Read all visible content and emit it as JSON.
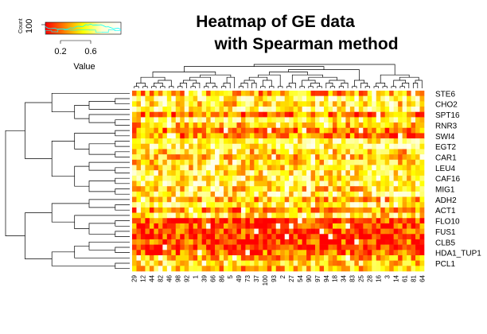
{
  "chart_data": {
    "type": "heatmap",
    "title_line1": "Heatmap of GE data",
    "title_line2": "with Spearman method",
    "color_scale": [
      "#ff0000",
      "#ff8000",
      "#ffff00",
      "#ffffd0",
      "#ffffff"
    ],
    "key": {
      "label": "Value",
      "ticks": [
        {
          "value": 0.2,
          "text": "0.2"
        },
        {
          "value": 0.6,
          "text": "0.6"
        }
      ],
      "range": [
        0.0,
        1.0
      ],
      "count_label": "Count",
      "count_tick": "100",
      "histogram_color": "#00ffff",
      "density_color": "#00ffff"
    },
    "row_labels_shown": [
      "STE6",
      "CHO2",
      "SPT16",
      "RNR3",
      "SWI4",
      "EGT2",
      "CAR1",
      "LEU4",
      "CAF16",
      "MIG1",
      "ADH2",
      "ACT1",
      "FLO10",
      "FUS1",
      "CLB5",
      "HDA1_TUP1",
      "PCL1"
    ],
    "column_labels": [
      "29",
      "12",
      "44",
      "82",
      "46",
      "98",
      "92",
      "1",
      "39",
      "66",
      "86",
      "5",
      "49",
      "73",
      "37",
      "100",
      "93",
      "2",
      "27",
      "54",
      "90",
      "97",
      "94",
      "18",
      "34",
      "83",
      "25",
      "28",
      "16",
      "3",
      "14",
      "61",
      "81",
      "64"
    ],
    "n_rows": 34,
    "n_cols": 67,
    "row_dendrogram": "shown",
    "column_dendrogram": "shown",
    "row_seed": 7,
    "cell_seed": 13
  }
}
